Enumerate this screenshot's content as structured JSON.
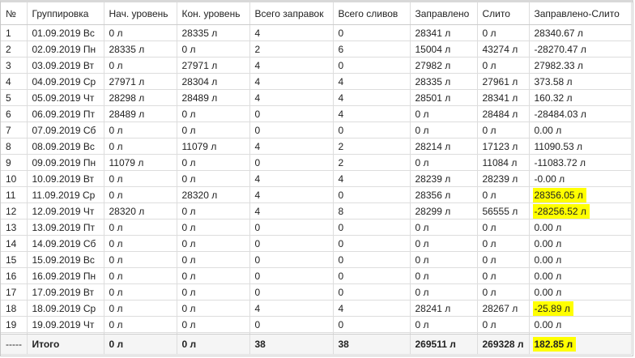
{
  "columns": [
    "№",
    "Группировка",
    "Нач. уровень",
    "Кон. уровень",
    "Всего заправок",
    "Всего сливов",
    "Заправлено",
    "Слито",
    "Заправлено-Слито"
  ],
  "rows": [
    [
      "1",
      "01.09.2019 Вс",
      "0 л",
      "28335 л",
      "4",
      "0",
      "28341 л",
      "0 л",
      "28340.67 л"
    ],
    [
      "2",
      "02.09.2019 Пн",
      "28335 л",
      "0 л",
      "2",
      "6",
      "15004 л",
      "43274 л",
      "-28270.47 л"
    ],
    [
      "3",
      "03.09.2019 Вт",
      "0 л",
      "27971 л",
      "4",
      "0",
      "27982 л",
      "0 л",
      "27982.33 л"
    ],
    [
      "4",
      "04.09.2019 Ср",
      "27971 л",
      "28304 л",
      "4",
      "4",
      "28335 л",
      "27961 л",
      "373.58 л"
    ],
    [
      "5",
      "05.09.2019 Чт",
      "28298 л",
      "28489 л",
      "4",
      "4",
      "28501 л",
      "28341 л",
      "160.32 л"
    ],
    [
      "6",
      "06.09.2019 Пт",
      "28489 л",
      "0 л",
      "0",
      "4",
      "0 л",
      "28484 л",
      "-28484.03 л"
    ],
    [
      "7",
      "07.09.2019 Сб",
      "0 л",
      "0 л",
      "0",
      "0",
      "0 л",
      "0 л",
      "0.00 л"
    ],
    [
      "8",
      "08.09.2019 Вс",
      "0 л",
      "11079 л",
      "4",
      "2",
      "28214 л",
      "17123 л",
      "11090.53 л"
    ],
    [
      "9",
      "09.09.2019 Пн",
      "11079 л",
      "0 л",
      "0",
      "2",
      "0 л",
      "11084 л",
      "-11083.72 л"
    ],
    [
      "10",
      "10.09.2019 Вт",
      "0 л",
      "0 л",
      "4",
      "4",
      "28239 л",
      "28239 л",
      "-0.00 л"
    ],
    [
      "11",
      "11.09.2019 Ср",
      "0 л",
      "28320 л",
      "4",
      "0",
      "28356 л",
      "0 л",
      "28356.05 л"
    ],
    [
      "12",
      "12.09.2019 Чт",
      "28320 л",
      "0 л",
      "4",
      "8",
      "28299 л",
      "56555 л",
      "-28256.52 л"
    ],
    [
      "13",
      "13.09.2019 Пт",
      "0 л",
      "0 л",
      "0",
      "0",
      "0 л",
      "0 л",
      "0.00 л"
    ],
    [
      "14",
      "14.09.2019 Сб",
      "0 л",
      "0 л",
      "0",
      "0",
      "0 л",
      "0 л",
      "0.00 л"
    ],
    [
      "15",
      "15.09.2019 Вс",
      "0 л",
      "0 л",
      "0",
      "0",
      "0 л",
      "0 л",
      "0.00 л"
    ],
    [
      "16",
      "16.09.2019 Пн",
      "0 л",
      "0 л",
      "0",
      "0",
      "0 л",
      "0 л",
      "0.00 л"
    ],
    [
      "17",
      "17.09.2019 Вт",
      "0 л",
      "0 л",
      "0",
      "0",
      "0 л",
      "0 л",
      "0.00 л"
    ],
    [
      "18",
      "18.09.2019 Ср",
      "0 л",
      "0 л",
      "4",
      "4",
      "28241 л",
      "28267 л",
      "-25.89 л"
    ],
    [
      "19",
      "19.09.2019 Чт",
      "0 л",
      "0 л",
      "0",
      "0",
      "0 л",
      "0 л",
      "0.00 л"
    ]
  ],
  "highlighted_rows": [
    10,
    11,
    17
  ],
  "total": [
    "-----",
    "Итого",
    "0 л",
    "0 л",
    "38",
    "38",
    "269511 л",
    "269328 л",
    "182.85 л"
  ],
  "total_highlighted": true,
  "colors": {
    "highlight": "#ffff00",
    "total_bg": "#f5f5f5"
  }
}
